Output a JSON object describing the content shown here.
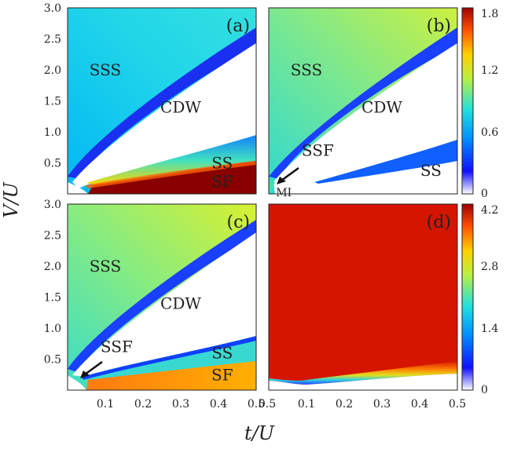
{
  "chart_data": [
    {
      "type": "heatmap",
      "panel_label": "(a)",
      "xlim": [
        0,
        0.5
      ],
      "ylim": [
        0,
        3.0
      ],
      "colorbar": {
        "ticks": [
          "0",
          "0.6",
          "1.2",
          "1.8"
        ],
        "range": [
          0,
          1.8
        ]
      },
      "regions": [
        {
          "label": "SSS",
          "at": [
            0.1,
            2.0
          ],
          "color": "#222222"
        },
        {
          "label": "CDW",
          "at": [
            0.3,
            1.4
          ],
          "color": "#222222"
        },
        {
          "label": "SS",
          "at": [
            0.41,
            0.5
          ],
          "color": "#222222"
        },
        {
          "label": "SF",
          "at": [
            0.41,
            0.2
          ],
          "color": "#222222"
        }
      ]
    },
    {
      "type": "heatmap",
      "panel_label": "(b)",
      "xlim": [
        0,
        0.5
      ],
      "ylim": [
        0,
        3.0
      ],
      "colorbar": {
        "ticks": [
          "0",
          "0.6",
          "1.2",
          "1.8"
        ],
        "range": [
          0,
          1.8
        ]
      },
      "regions": [
        {
          "label": "SSS",
          "at": [
            0.1,
            2.0
          ],
          "color": "#222222"
        },
        {
          "label": "CDW",
          "at": [
            0.3,
            1.4
          ],
          "color": "#222222"
        },
        {
          "label": "SSF",
          "at": [
            0.13,
            0.7
          ],
          "color": "#222222"
        },
        {
          "label": "SS",
          "at": [
            0.43,
            0.38
          ],
          "color": "#ffffff"
        },
        {
          "label": "MI",
          "at": [
            0.04,
            0.05
          ],
          "color": "#222222"
        }
      ]
    },
    {
      "type": "heatmap",
      "panel_label": "(c)",
      "xlim": [
        0,
        0.5
      ],
      "ylim": [
        0,
        3.0
      ],
      "colorbar": null,
      "regions": [
        {
          "label": "SSS",
          "at": [
            0.1,
            2.0
          ],
          "color": "#222222"
        },
        {
          "label": "CDW",
          "at": [
            0.3,
            1.4
          ],
          "color": "#222222"
        },
        {
          "label": "SSF",
          "at": [
            0.13,
            0.7
          ],
          "color": "#222222"
        },
        {
          "label": "SS",
          "at": [
            0.41,
            0.6
          ],
          "color": "#222222"
        },
        {
          "label": "SF",
          "at": [
            0.41,
            0.25
          ],
          "color": "#222222"
        }
      ]
    },
    {
      "type": "heatmap",
      "panel_label": "(d)",
      "xlim": [
        0,
        0.5
      ],
      "ylim": [
        0,
        3.0
      ],
      "colorbar": {
        "ticks": [
          "0",
          "1.4",
          "2.8",
          "4.2"
        ],
        "range": [
          0,
          4.2
        ]
      },
      "regions": []
    }
  ],
  "axes": {
    "xlabel": "t/U",
    "ylabel": "V/U",
    "yticks": [
      "0.5",
      "1.0",
      "1.5",
      "2.0",
      "2.5",
      "3.0"
    ],
    "xticks_left": [
      "0.1",
      "0.2",
      "0.3",
      "0.4",
      "0.5"
    ],
    "xticks_right": [
      "0.5",
      "0.1",
      "0.2",
      "0.3",
      "0.4",
      "0.5"
    ]
  }
}
